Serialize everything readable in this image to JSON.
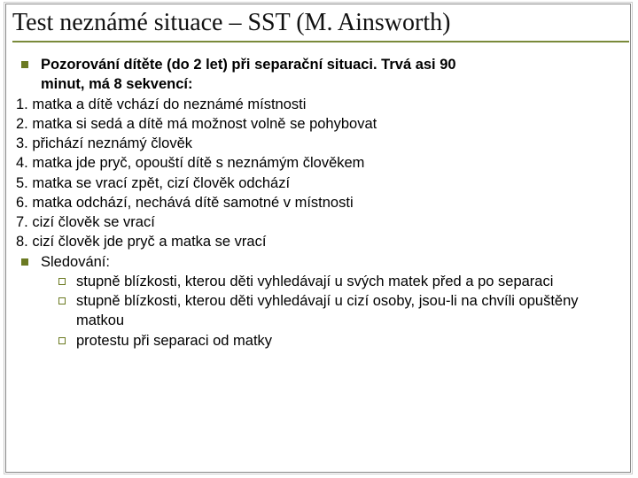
{
  "title": "Test neznámé situace – SST (M. Ainsworth)",
  "colors": {
    "rule": "#7a8a3a",
    "bullet": "#6b7a22",
    "border": "#888888",
    "text": "#000000",
    "background": "#ffffff"
  },
  "typography": {
    "title_family": "Times New Roman",
    "title_size_pt": 21,
    "body_family": "Arial",
    "body_size_pt": 12
  },
  "intro": {
    "line1_bold": "Pozorování dítěte (do 2 let) při separační situaci. Trvá asi 90",
    "line2_bold": "minut, má 8 sekvencí:"
  },
  "sequences": [
    "1. matka a dítě vchází do neznámé místnosti",
    "2. matka si sedá a dítě má možnost volně se pohybovat",
    "3. přichází neznámý člověk",
    "4. matka jde pryč, opouští dítě s neznámým člověkem",
    "5. matka se vrací zpět, cizí člověk odchází",
    "6. matka odchází, nechává dítě samotné v místnosti",
    "7. cizí člověk se vrací",
    "8. cizí člověk jde pryč a matka se vrací"
  ],
  "sledovani_label": "Sledování:",
  "sub_items": [
    {
      "plain": "stupně blízkosti, kterou děti vyhledávají u svých matek",
      "tail": " před a po separaci"
    },
    {
      "plain": "stupně blízkosti, kterou děti vyhledávají u cizí osoby,",
      "tail": " jsou-li na chvíli opuštěny matkou"
    },
    {
      "plain": "protestu",
      "tail": " při separaci od matky"
    }
  ]
}
